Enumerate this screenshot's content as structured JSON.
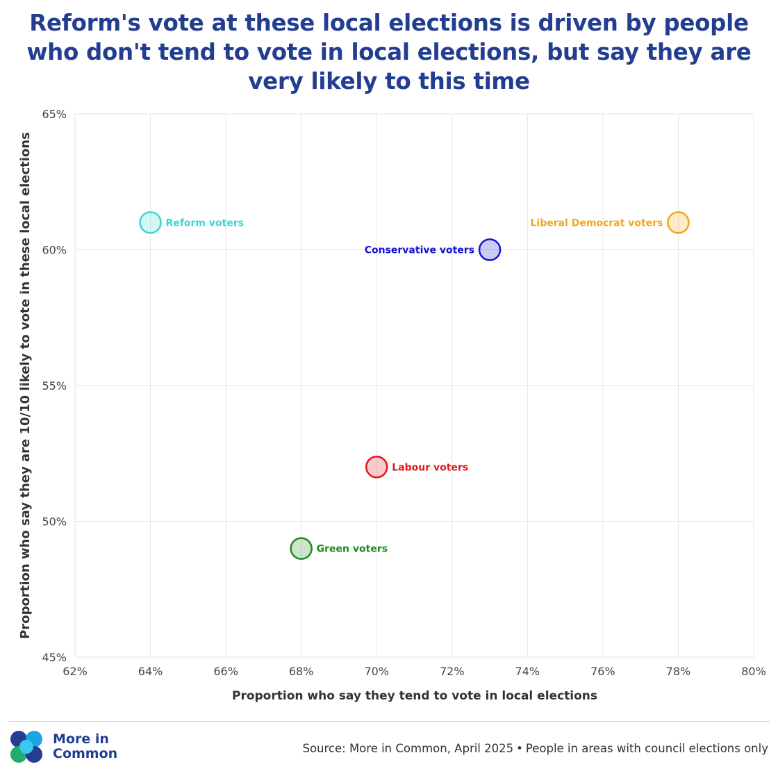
{
  "title": "Reform's vote at these local elections is driven by people who don't tend to vote in local elections, but say they are very likely to this time",
  "chart_data": {
    "type": "scatter",
    "title": "Reform's vote at these local elections is driven by people who don't tend to vote in local elections, but say they are very likely to this time",
    "xlabel": "Proportion who say they tend to vote in local elections",
    "ylabel": "Proportion who say they are 10/10 likely to vote in these local elections",
    "xlim": [
      62,
      80
    ],
    "ylim": [
      45,
      65
    ],
    "x_ticks": [
      62,
      64,
      66,
      68,
      70,
      72,
      74,
      76,
      78,
      80
    ],
    "y_ticks": [
      45,
      50,
      55,
      60,
      65
    ],
    "x_tick_labels": [
      "62%",
      "64%",
      "66%",
      "68%",
      "70%",
      "72%",
      "74%",
      "76%",
      "78%",
      "80%"
    ],
    "y_tick_labels": [
      "45%",
      "50%",
      "55%",
      "60%",
      "65%"
    ],
    "grid": true,
    "points": [
      {
        "label": "Reform voters",
        "x": 64,
        "y": 61,
        "color": "#3dd6d0",
        "label_side": "right"
      },
      {
        "label": "Conservative voters",
        "x": 73,
        "y": 60,
        "color": "#1212d6",
        "label_side": "left"
      },
      {
        "label": "Liberal Democrat voters",
        "x": 78,
        "y": 61,
        "color": "#f5a518",
        "label_side": "left"
      },
      {
        "label": "Labour voters",
        "x": 70,
        "y": 52,
        "color": "#e3141b",
        "label_side": "right"
      },
      {
        "label": "Green voters",
        "x": 68,
        "y": 49,
        "color": "#1c8a1c",
        "label_side": "right"
      }
    ]
  },
  "brand": {
    "logo_line1": "More in",
    "logo_line2": "Common",
    "color": "#233d91"
  },
  "footer": {
    "source": "Source: More in Common, April 2025",
    "separator": "•",
    "note": "People in areas with council elections only"
  }
}
